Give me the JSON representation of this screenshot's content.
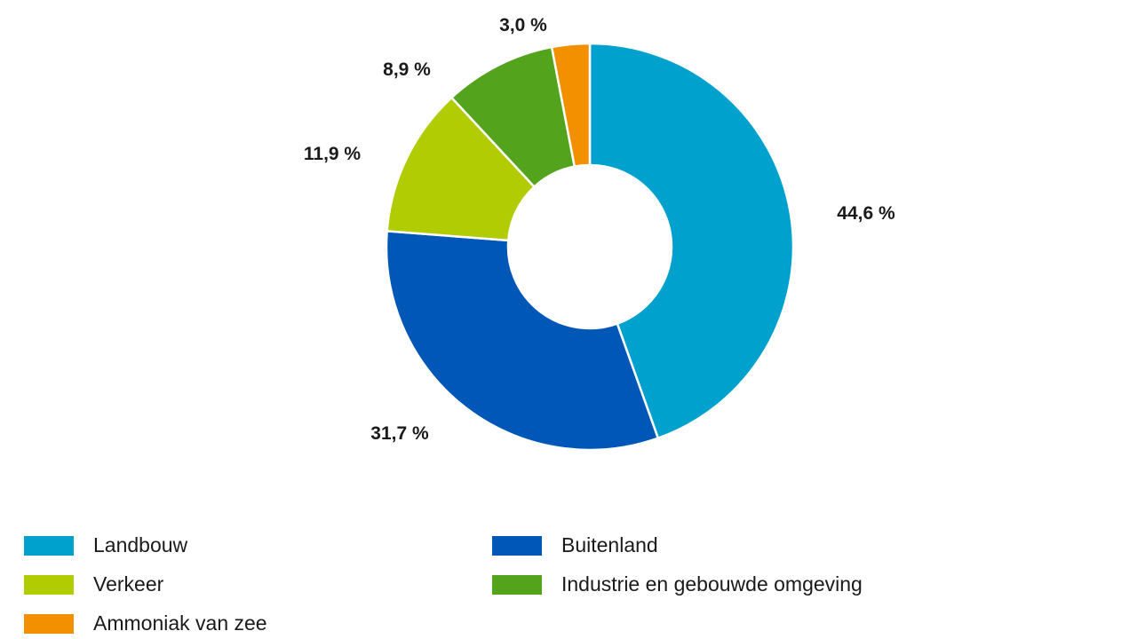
{
  "chart_data": {
    "type": "pie",
    "variant": "donut",
    "title": "",
    "categories": [
      "Landbouw",
      "Buitenland",
      "Verkeer",
      "Industrie en gebouwde omgeving",
      "Ammoniak van zee"
    ],
    "values": [
      44.6,
      31.7,
      11.9,
      8.9,
      3.0
    ],
    "labels": [
      "44,6 %",
      "31,7 %",
      "11,9 %",
      "8,9 %",
      "3,0 %"
    ],
    "colors": [
      "#00a2cd",
      "#0057b8",
      "#b2cc04",
      "#53a31d",
      "#f39000"
    ],
    "start_angle": "top, clockwise",
    "legend_position": "bottom"
  },
  "legend": {
    "items": [
      {
        "label": "Landbouw",
        "color": "#00a2cd"
      },
      {
        "label": "Buitenland",
        "color": "#0057b8"
      },
      {
        "label": "Verkeer",
        "color": "#b2cc04"
      },
      {
        "label": "Industrie en gebouwde omgeving",
        "color": "#53a31d"
      },
      {
        "label": "Ammoniak van zee",
        "color": "#f39000"
      }
    ]
  },
  "slice_labels": {
    "landbouw": "44,6 %",
    "buitenland": "31,7 %",
    "verkeer": "11,9 %",
    "industrie": "8,9 %",
    "ammoniak": "3,0 %"
  }
}
